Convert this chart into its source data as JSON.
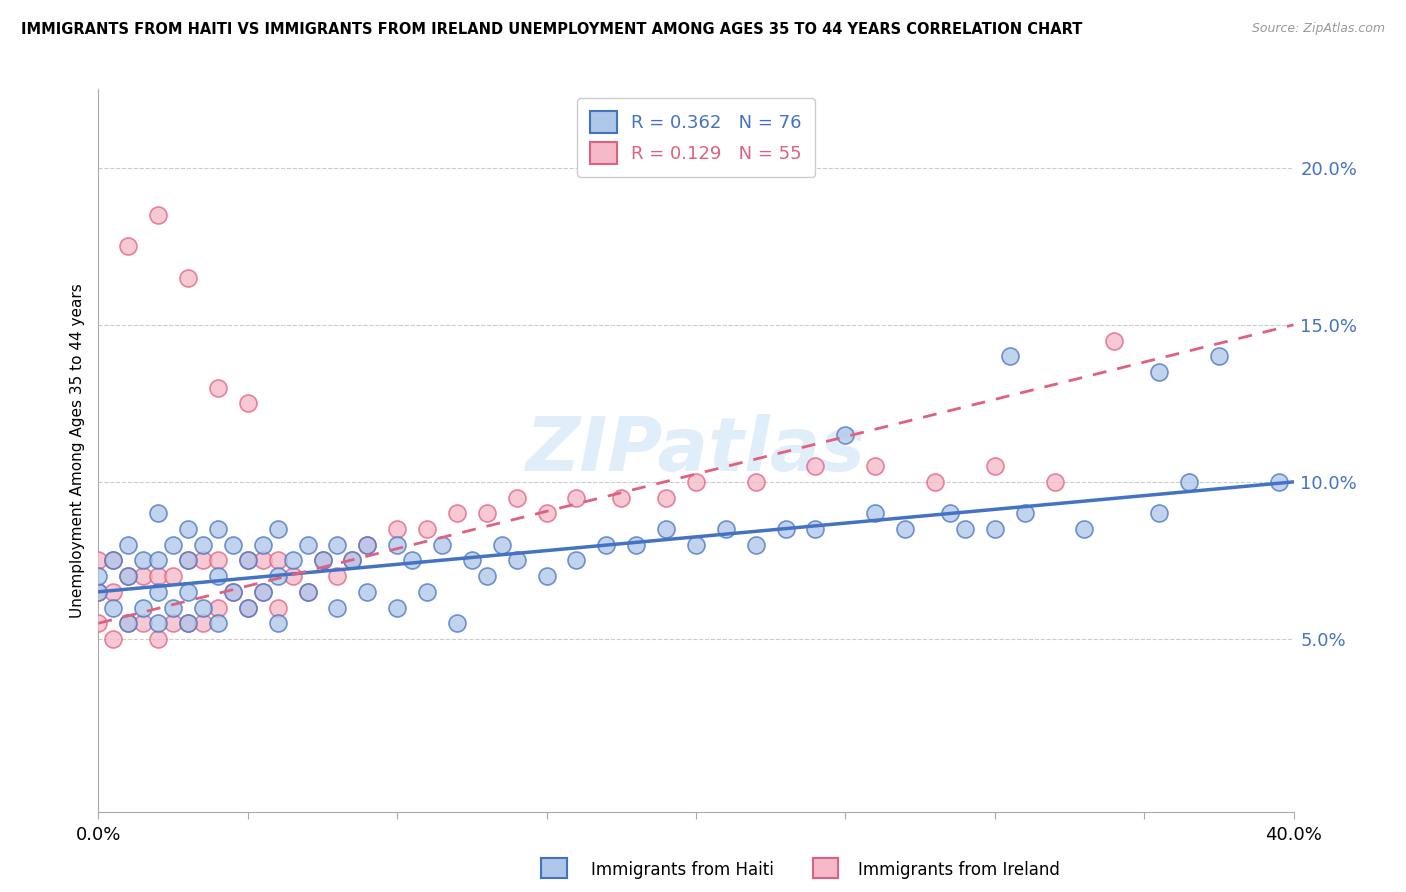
{
  "title": "IMMIGRANTS FROM HAITI VS IMMIGRANTS FROM IRELAND UNEMPLOYMENT AMONG AGES 35 TO 44 YEARS CORRELATION CHART",
  "source": "Source: ZipAtlas.com",
  "ylabel": "Unemployment Among Ages 35 to 44 years",
  "ytick_labels": [
    "5.0%",
    "10.0%",
    "15.0%",
    "20.0%"
  ],
  "ytick_values": [
    0.05,
    0.1,
    0.15,
    0.2
  ],
  "xlim": [
    0.0,
    0.4
  ],
  "ylim": [
    -0.005,
    0.225
  ],
  "legend_label1": "Immigrants from Haiti",
  "legend_label2": "Immigrants from Ireland",
  "r1": "0.362",
  "n1": "76",
  "r2": "0.129",
  "n2": "55",
  "haiti_color": "#aec6e8",
  "ireland_color": "#f4b8c8",
  "haiti_line_color": "#4472c4",
  "ireland_line_color": "#e06080",
  "watermark": "ZIPatlas",
  "haiti_x": [
    0.0,
    0.0,
    0.005,
    0.005,
    0.01,
    0.01,
    0.01,
    0.015,
    0.015,
    0.02,
    0.02,
    0.02,
    0.02,
    0.025,
    0.025,
    0.03,
    0.03,
    0.03,
    0.03,
    0.035,
    0.035,
    0.04,
    0.04,
    0.04,
    0.045,
    0.045,
    0.05,
    0.05,
    0.055,
    0.055,
    0.06,
    0.06,
    0.06,
    0.065,
    0.07,
    0.07,
    0.075,
    0.08,
    0.08,
    0.085,
    0.09,
    0.09,
    0.1,
    0.1,
    0.105,
    0.11,
    0.115,
    0.12,
    0.125,
    0.13,
    0.135,
    0.14,
    0.15,
    0.16,
    0.17,
    0.18,
    0.19,
    0.2,
    0.21,
    0.22,
    0.23,
    0.24,
    0.26,
    0.27,
    0.285,
    0.3,
    0.31,
    0.33,
    0.355,
    0.365,
    0.25,
    0.29,
    0.305,
    0.355,
    0.375,
    0.395
  ],
  "haiti_y": [
    0.065,
    0.07,
    0.06,
    0.075,
    0.055,
    0.07,
    0.08,
    0.06,
    0.075,
    0.055,
    0.065,
    0.075,
    0.09,
    0.06,
    0.08,
    0.055,
    0.065,
    0.075,
    0.085,
    0.06,
    0.08,
    0.055,
    0.07,
    0.085,
    0.065,
    0.08,
    0.06,
    0.075,
    0.065,
    0.08,
    0.055,
    0.07,
    0.085,
    0.075,
    0.065,
    0.08,
    0.075,
    0.06,
    0.08,
    0.075,
    0.065,
    0.08,
    0.06,
    0.08,
    0.075,
    0.065,
    0.08,
    0.055,
    0.075,
    0.07,
    0.08,
    0.075,
    0.07,
    0.075,
    0.08,
    0.08,
    0.085,
    0.08,
    0.085,
    0.08,
    0.085,
    0.085,
    0.09,
    0.085,
    0.09,
    0.085,
    0.09,
    0.085,
    0.09,
    0.1,
    0.115,
    0.085,
    0.14,
    0.135,
    0.14,
    0.1
  ],
  "ireland_x": [
    0.0,
    0.0,
    0.0,
    0.005,
    0.005,
    0.005,
    0.01,
    0.01,
    0.015,
    0.015,
    0.02,
    0.02,
    0.025,
    0.025,
    0.03,
    0.03,
    0.035,
    0.035,
    0.04,
    0.04,
    0.045,
    0.05,
    0.05,
    0.055,
    0.055,
    0.06,
    0.06,
    0.065,
    0.07,
    0.075,
    0.08,
    0.085,
    0.09,
    0.1,
    0.11,
    0.12,
    0.13,
    0.14,
    0.15,
    0.16,
    0.175,
    0.19,
    0.2,
    0.22,
    0.24,
    0.26,
    0.28,
    0.3,
    0.32,
    0.34,
    0.01,
    0.02,
    0.03,
    0.04,
    0.05
  ],
  "ireland_y": [
    0.055,
    0.065,
    0.075,
    0.05,
    0.065,
    0.075,
    0.055,
    0.07,
    0.055,
    0.07,
    0.05,
    0.07,
    0.055,
    0.07,
    0.055,
    0.075,
    0.055,
    0.075,
    0.06,
    0.075,
    0.065,
    0.06,
    0.075,
    0.065,
    0.075,
    0.06,
    0.075,
    0.07,
    0.065,
    0.075,
    0.07,
    0.075,
    0.08,
    0.085,
    0.085,
    0.09,
    0.09,
    0.095,
    0.09,
    0.095,
    0.095,
    0.095,
    0.1,
    0.1,
    0.105,
    0.105,
    0.1,
    0.105,
    0.1,
    0.145,
    0.175,
    0.185,
    0.165,
    0.13,
    0.125
  ],
  "haiti_trend_x0": 0.0,
  "haiti_trend_y0": 0.065,
  "haiti_trend_x1": 0.4,
  "haiti_trend_y1": 0.1,
  "ireland_trend_x0": 0.0,
  "ireland_trend_y0": 0.055,
  "ireland_trend_x1": 0.4,
  "ireland_trend_y1": 0.15
}
